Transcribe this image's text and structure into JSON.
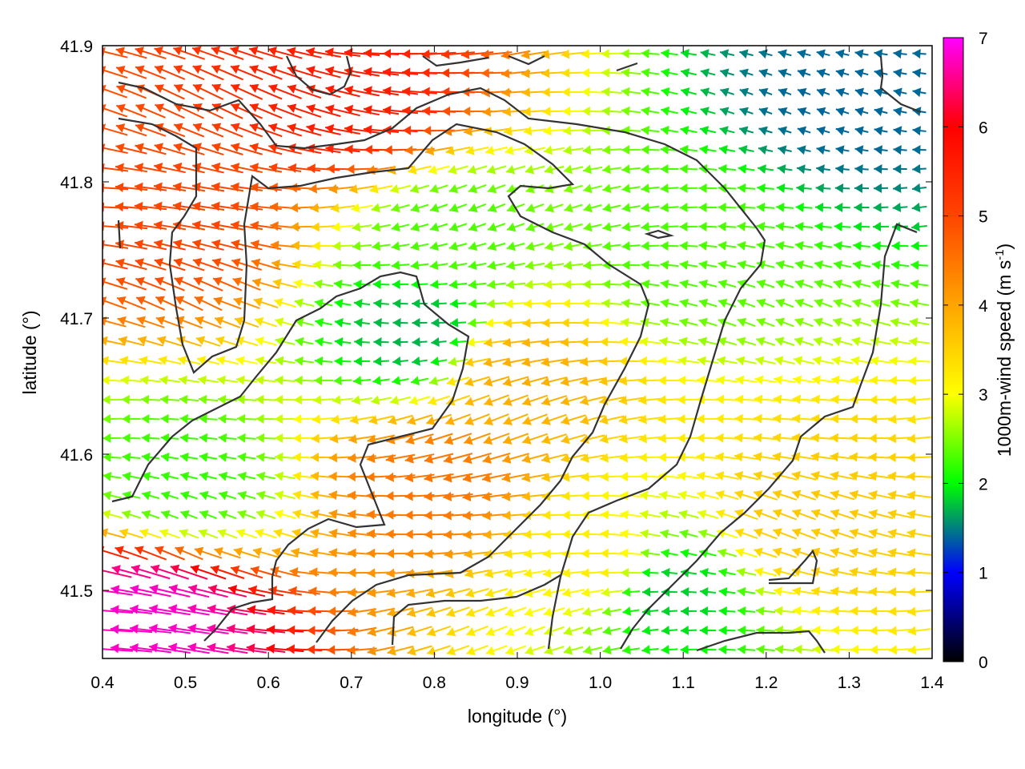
{
  "chart_data": {
    "type": "vector-field",
    "xlabel": "longitude (°)",
    "ylabel": "latitude (°)",
    "xlim": [
      0.4,
      1.4
    ],
    "ylim": [
      41.45,
      41.9
    ],
    "xticks": [
      "0.4",
      "0.5",
      "0.6",
      "0.7",
      "0.8",
      "0.9",
      "1.0",
      "1.1",
      "1.2",
      "1.3",
      "1.4"
    ],
    "yticks": [
      "41.5",
      "41.6",
      "41.7",
      "41.8",
      "41.9"
    ],
    "colorbar": {
      "label": "1000m-wind speed (m s",
      "label_superscript": "-1",
      "label_close": ")",
      "range": [
        0,
        7
      ],
      "ticks": [
        "0",
        "1",
        "2",
        "3",
        "4",
        "5",
        "6",
        "7"
      ],
      "colors": [
        "#000000",
        "#0000ff",
        "#00ff00",
        "#ffff00",
        "#ffa500",
        "#ff4500",
        "#ff0000",
        "#ff00ff"
      ]
    },
    "grid": false,
    "arrow_direction": "mostly westward (pointing left), speed encoded by color",
    "speed_regions": [
      {
        "lon": 0.5,
        "lat": 41.77,
        "speed": 5.0
      },
      {
        "lon": 0.7,
        "lat": 41.86,
        "speed": 5.6
      },
      {
        "lon": 0.46,
        "lat": 41.48,
        "speed": 6.8
      },
      {
        "lon": 0.5,
        "lat": 41.58,
        "speed": 2.2
      },
      {
        "lon": 0.78,
        "lat": 41.69,
        "speed": 1.7
      },
      {
        "lon": 0.82,
        "lat": 41.76,
        "speed": 2.3
      },
      {
        "lon": 0.8,
        "lat": 41.58,
        "speed": 4.5
      },
      {
        "lon": 0.9,
        "lat": 41.66,
        "speed": 3.9
      },
      {
        "lon": 1.1,
        "lat": 41.75,
        "speed": 2.3
      },
      {
        "lon": 1.3,
        "lat": 41.86,
        "speed": 1.4
      },
      {
        "lon": 1.08,
        "lat": 41.5,
        "speed": 1.8
      },
      {
        "lon": 1.25,
        "lat": 41.55,
        "speed": 3.6
      },
      {
        "lon": 1.0,
        "lat": 41.52,
        "speed": 3.2
      }
    ]
  }
}
